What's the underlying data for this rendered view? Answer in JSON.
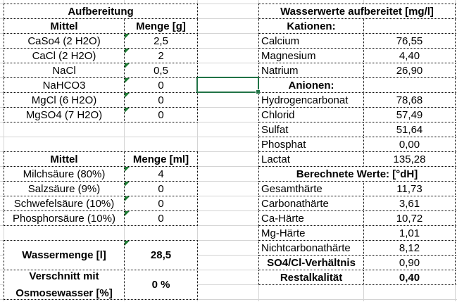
{
  "left": {
    "title": "Aufbereitung",
    "salts": {
      "col_agent": "Mittel",
      "col_amount": "Menge [g]",
      "rows": [
        {
          "agent": "CaSo4 (2 H2O)",
          "amount": "2,5"
        },
        {
          "agent": "CaCl (2 H2O)",
          "amount": "2"
        },
        {
          "agent": "NaCl",
          "amount": "0,5"
        },
        {
          "agent": "NaHCO3",
          "amount": "0"
        },
        {
          "agent": "MgCl (6 H2O)",
          "amount": "0"
        },
        {
          "agent": "MgSO4 (7 H2O)",
          "amount": "0"
        }
      ]
    },
    "acids": {
      "col_agent": "Mittel",
      "col_amount": "Menge [ml]",
      "rows": [
        {
          "agent": "Milchsäure (80%)",
          "amount": "4"
        },
        {
          "agent": "Salzsäure (9%)",
          "amount": "0"
        },
        {
          "agent": "Schwefelsäure (10%)",
          "amount": "0"
        },
        {
          "agent": "Phosphorsäure (10%)",
          "amount": "0"
        }
      ]
    },
    "water_amount": {
      "label": "Wassermenge [l]",
      "value": "28,5"
    },
    "blend": {
      "label": "Verschnitt mit Osmosewasser [%]",
      "value": "0 %"
    }
  },
  "right": {
    "title": "Wasserwerte aufbereitet [mg/l]",
    "cations_label": "Kationen:",
    "cations": [
      {
        "name": "Calcium",
        "value": "76,55"
      },
      {
        "name": "Magnesium",
        "value": "4,40"
      },
      {
        "name": "Natrium",
        "value": "26,90"
      }
    ],
    "anions_label": "Anionen:",
    "anions": [
      {
        "name": "Hydrogencarbonat",
        "value": "78,68"
      },
      {
        "name": "Chlorid",
        "value": "57,49"
      },
      {
        "name": "Sulfat",
        "value": "51,64"
      },
      {
        "name": "Phosphat",
        "value": "0,00"
      },
      {
        "name": "Lactat",
        "value": "135,28"
      }
    ],
    "calc_label": "Berechnete Werte: [°dH]",
    "calc": [
      {
        "name": "Gesamthärte",
        "value": "11,73"
      },
      {
        "name": "Carbonathärte",
        "value": "3,61"
      },
      {
        "name": "Ca-Härte",
        "value": "10,72"
      },
      {
        "name": "Mg-Härte",
        "value": "1,01"
      },
      {
        "name": "Nichtcarbonathärte",
        "value": "8,12"
      }
    ],
    "ratio": {
      "label": "SO4/Cl-Verhältnis",
      "value": "0,90"
    },
    "residual": {
      "label": "Restalkalität",
      "value": "0,40"
    }
  },
  "colors": {
    "selection": "#217346",
    "comment_marker": "#1e7b34",
    "gridline": "#d4d4d4"
  }
}
